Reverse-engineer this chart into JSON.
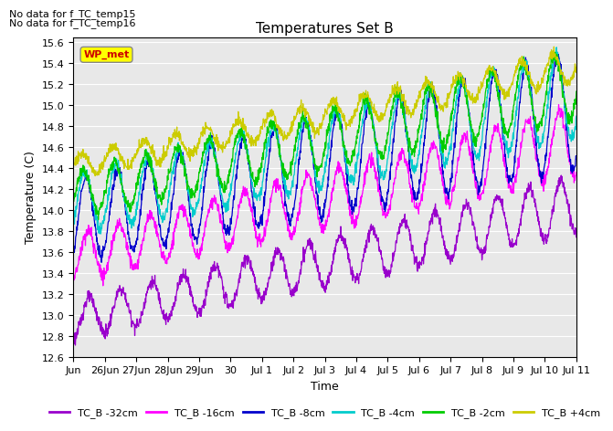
{
  "title": "Temperatures Set B",
  "xlabel": "Time",
  "ylabel": "Temperature (C)",
  "ylim": [
    12.6,
    15.65
  ],
  "yticks": [
    12.6,
    12.8,
    13.0,
    13.2,
    13.4,
    13.6,
    13.8,
    14.0,
    14.2,
    14.4,
    14.6,
    14.8,
    15.0,
    15.2,
    15.4,
    15.6
  ],
  "note1": "No data for f_TC_temp15",
  "note2": "No data for f_TC_temp16",
  "wp_label": "WP_met",
  "legend_labels": [
    "TC_B -32cm",
    "TC_B -16cm",
    "TC_B -8cm",
    "TC_B -4cm",
    "TC_B -2cm",
    "TC_B +4cm"
  ],
  "colors": [
    "#9900cc",
    "#ff00ff",
    "#0000cc",
    "#00cccc",
    "#00cc00",
    "#cccc00"
  ],
  "x_tick_labels": [
    "Jun",
    "26Jun",
    "27Jun",
    "28Jun",
    "29Jun",
    "30",
    "Jul 1",
    "Jul 2",
    "Jul 3",
    "Jul 4",
    "Jul 5",
    "Jul 6",
    "Jul 7",
    "Jul 8",
    "Jul 9",
    "Jul 10",
    "Jul 11"
  ],
  "x_tick_positions": [
    0,
    1,
    2,
    3,
    4,
    5,
    6,
    7,
    8,
    9,
    10,
    11,
    12,
    13,
    14,
    15,
    16
  ],
  "background_color": "#ffffff",
  "plot_bg": "#e8e8e8",
  "grid_color": "#ffffff"
}
